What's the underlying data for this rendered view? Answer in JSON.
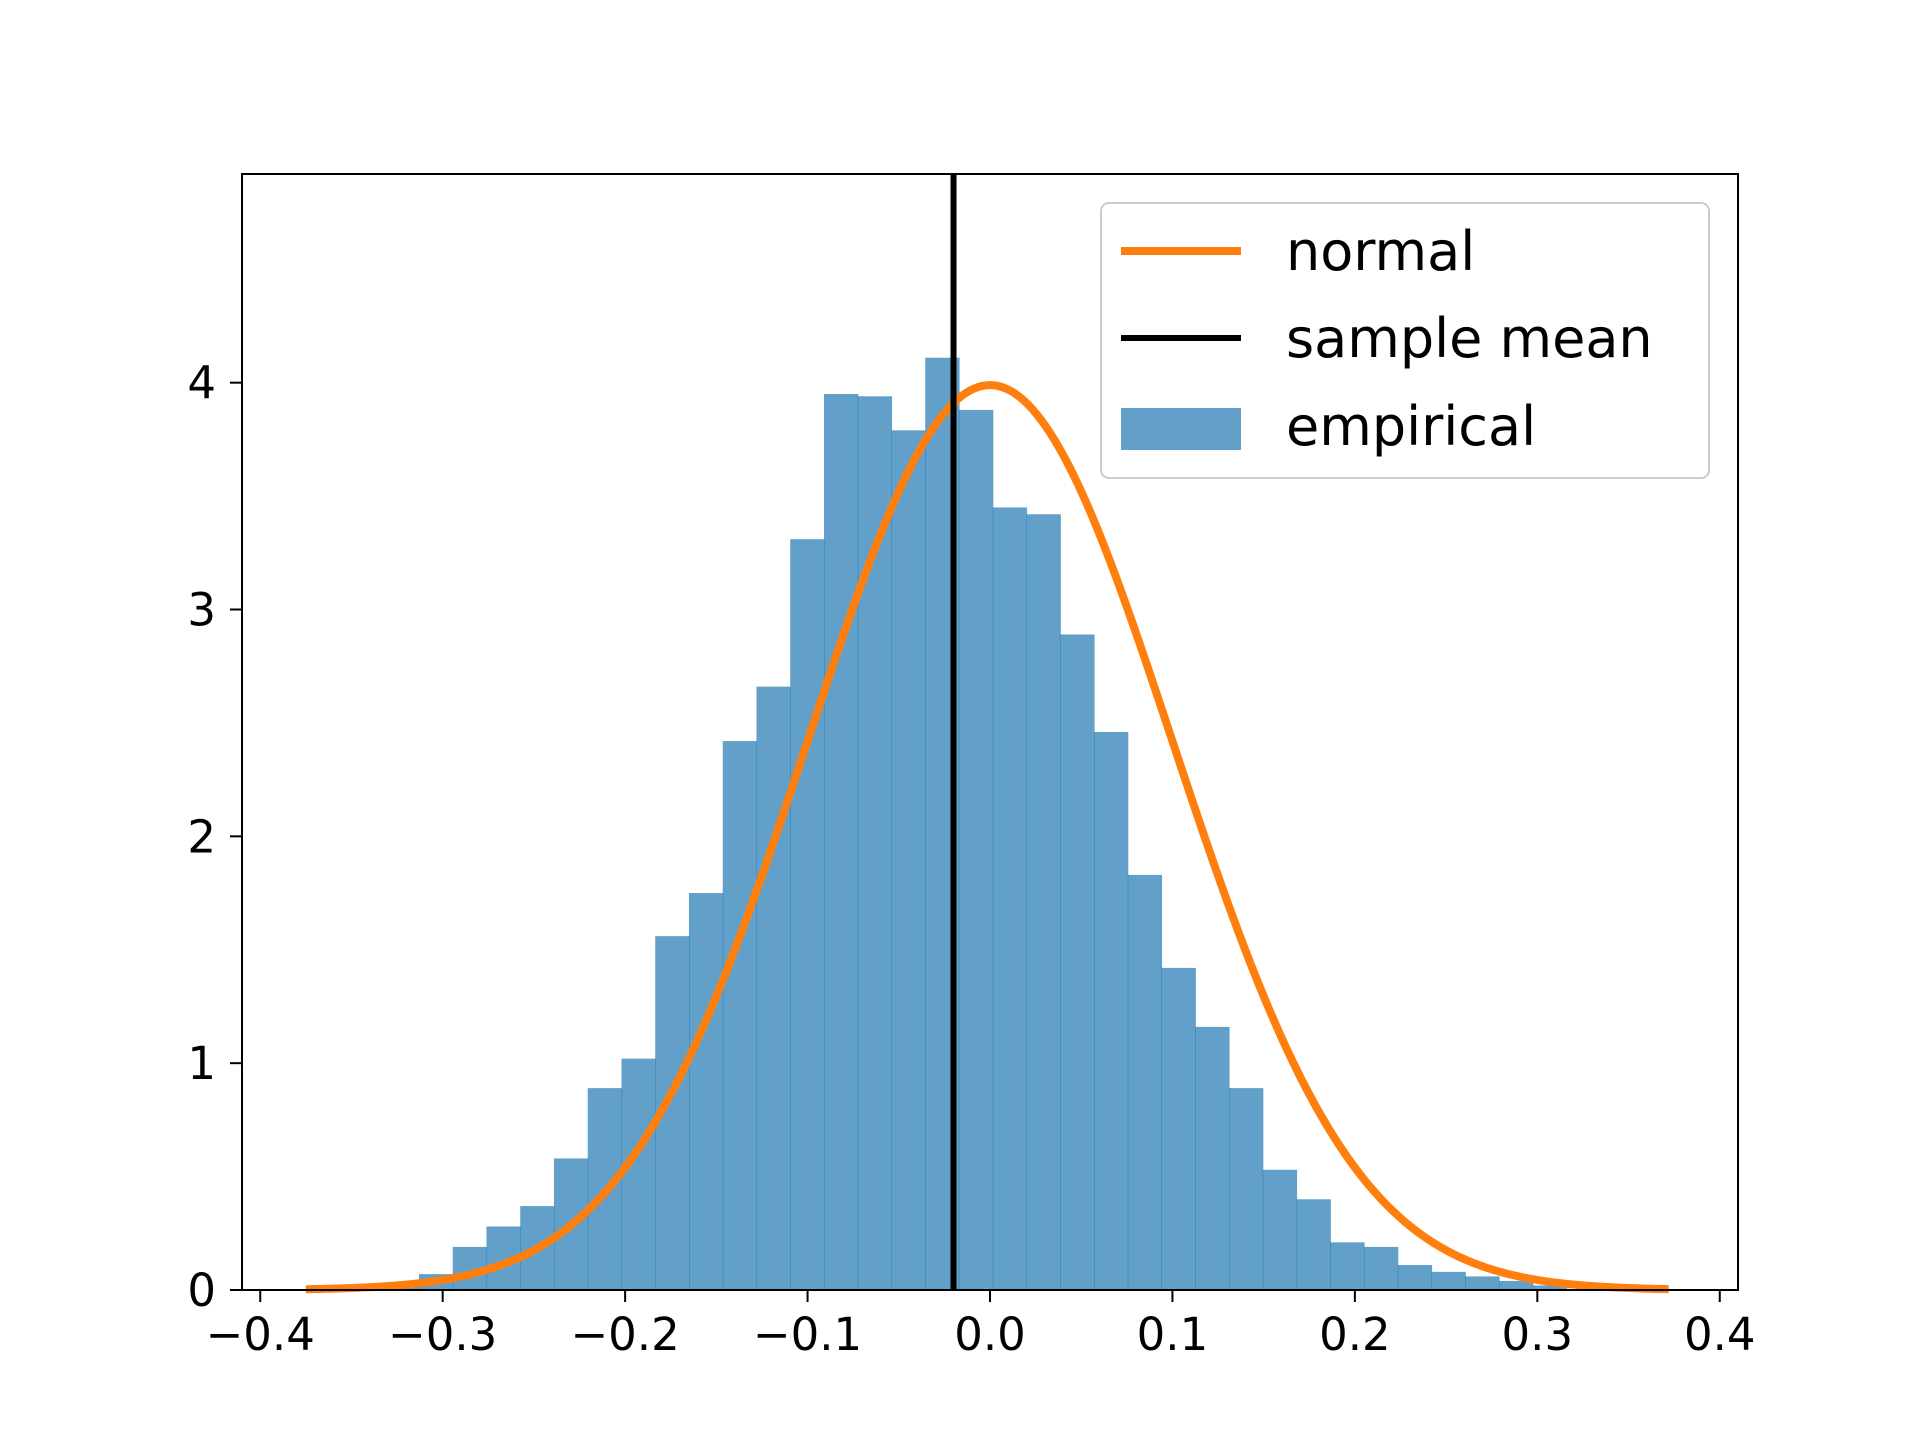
{
  "chart_data": {
    "type": "bar",
    "title": "",
    "xlabel": "",
    "ylabel": "",
    "xlim": [
      -0.41,
      0.41
    ],
    "ylim": [
      0,
      4.92
    ],
    "grid": false,
    "legend_placement": "top-right",
    "colors": {
      "histogram": "#1f77b4",
      "normal": "#ff7f0e",
      "mean": "#000000"
    },
    "x_ticks": [
      {
        "value": -0.4,
        "label": "−0.4"
      },
      {
        "value": -0.3,
        "label": "−0.3"
      },
      {
        "value": -0.2,
        "label": "−0.2"
      },
      {
        "value": -0.1,
        "label": "−0.1"
      },
      {
        "value": 0.0,
        "label": "0.0"
      },
      {
        "value": 0.1,
        "label": "0.1"
      },
      {
        "value": 0.2,
        "label": "0.2"
      },
      {
        "value": 0.3,
        "label": "0.3"
      },
      {
        "value": 0.4,
        "label": "0.4"
      }
    ],
    "y_ticks": [
      {
        "value": 0,
        "label": "0"
      },
      {
        "value": 1,
        "label": "1"
      },
      {
        "value": 2,
        "label": "2"
      },
      {
        "value": 3,
        "label": "3"
      },
      {
        "value": 4,
        "label": "4"
      }
    ],
    "histogram": {
      "name": "empirical",
      "bin_start": -0.35,
      "bin_width": 0.0185,
      "values": [
        0.01,
        0.03,
        0.07,
        0.19,
        0.28,
        0.37,
        0.58,
        0.89,
        1.02,
        1.56,
        1.75,
        2.42,
        2.66,
        3.31,
        3.95,
        3.94,
        3.79,
        4.11,
        3.88,
        3.45,
        3.42,
        2.89,
        2.46,
        1.83,
        1.42,
        1.16,
        0.89,
        0.53,
        0.4,
        0.21,
        0.19,
        0.11,
        0.08,
        0.06,
        0.04,
        0.02
      ]
    },
    "normal": {
      "name": "normal",
      "mean": 0.0,
      "std": 0.1,
      "x_min": -0.375,
      "x_max": 0.372
    },
    "sample_mean": {
      "name": "sample mean",
      "value": -0.02
    },
    "legend": [
      {
        "label": "normal",
        "kind": "line",
        "color": "#ff7f0e"
      },
      {
        "label": "sample mean",
        "kind": "line",
        "color": "#000000"
      },
      {
        "label": "empirical",
        "kind": "patch",
        "color": "#1f77b4"
      }
    ]
  }
}
